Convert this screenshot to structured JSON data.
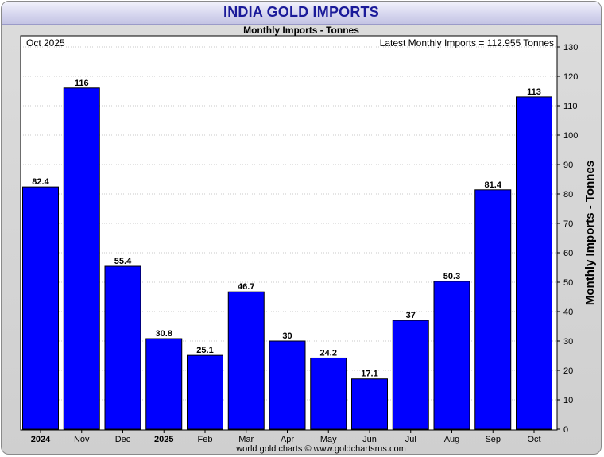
{
  "chart_data": {
    "type": "bar",
    "title": "INDIA GOLD IMPORTS",
    "subtitle": "Monthly Imports - Tonnes",
    "period_label": "Oct 2025",
    "latest_label": "Latest Monthly Imports = 112.955 Tonnes",
    "ylabel": "Monthly Imports - Tonnes",
    "xlabel": "",
    "footer": "world gold charts © www.goldchartsrus.com",
    "ylim": [
      0,
      130
    ],
    "yticks": [
      0,
      10,
      20,
      30,
      40,
      50,
      60,
      70,
      80,
      90,
      100,
      110,
      120,
      130
    ],
    "categories": [
      "2024",
      "Nov",
      "Dec",
      "2025",
      "Feb",
      "Mar",
      "Apr",
      "May",
      "Jun",
      "Jul",
      "Aug",
      "Sep",
      "Oct"
    ],
    "bold_categories": [
      "2024",
      "2025"
    ],
    "values": [
      82.4,
      116,
      55.4,
      30.8,
      25.1,
      46.7,
      30,
      24.2,
      17.1,
      37,
      50.3,
      81.4,
      113
    ],
    "value_labels": [
      "82.4",
      "116",
      "55.4",
      "30.8",
      "25.1",
      "46.7",
      "30",
      "24.2",
      "17.1",
      "37",
      "50.3",
      "81.4",
      "113"
    ],
    "bar_color": "#0000ff",
    "grid": true
  }
}
